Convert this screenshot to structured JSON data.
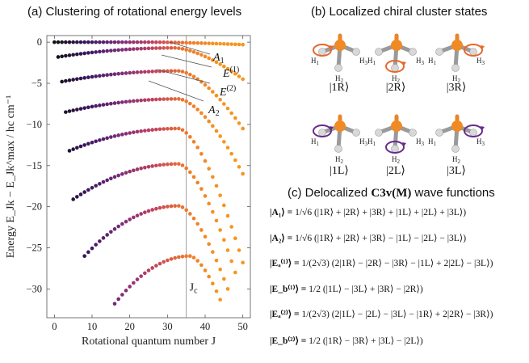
{
  "panel_a": {
    "title": "(a) Clustering of rotational energy levels"
  },
  "panel_b": {
    "title": "(b) Localized chiral cluster states",
    "atom_labels": {
      "h1": "H",
      "h1_sub": "1",
      "h2": "H",
      "h2_sub": "2",
      "h3": "H",
      "h3_sub": "3"
    },
    "states": [
      {
        "ket": "|1R⟩",
        "rotated": "h1",
        "color": "#e8672b"
      },
      {
        "ket": "|2R⟩",
        "rotated": "h2",
        "color": "#e8672b"
      },
      {
        "ket": "|3R⟩",
        "rotated": "h3",
        "color": "#e8672b"
      },
      {
        "ket": "|1L⟩",
        "rotated": "h1",
        "color": "#6a2a8a"
      },
      {
        "ket": "|2L⟩",
        "rotated": "h2",
        "color": "#6a2a8a"
      },
      {
        "ket": "|3L⟩",
        "rotated": "h3",
        "color": "#6a2a8a"
      }
    ]
  },
  "panel_c": {
    "title_prefix": "(c) Delocalized ",
    "title_group": "C3v(M)",
    "title_suffix": " wave functions",
    "equations": [
      {
        "lhs": "|A₁⟩ =",
        "rhs": "1/√6 (|1R⟩ + |2R⟩ + |3R⟩ + |1L⟩ + |2L⟩ + |3L⟩)"
      },
      {
        "lhs": "|A₂⟩ =",
        "rhs": "1/√6 (|1R⟩ + |2R⟩ + |3R⟩ − |1L⟩ − |2L⟩ − |3L⟩)"
      },
      {
        "lhs": "|Eₐ⁽¹⁾⟩ =",
        "rhs": "1/(2√3) (2|1R⟩ − |2R⟩ − |3R⟩ − |1L⟩ + 2|2L⟩ − |3L⟩)"
      },
      {
        "lhs": "|E_b⁽¹⁾⟩ =",
        "rhs": "1/2 (|1L⟩ − |3L⟩ + |3R⟩ − |2R⟩)"
      },
      {
        "lhs": "|Eₐ⁽²⁾⟩ =",
        "rhs": "1/(2√3) (2|1L⟩ − |2L⟩ − |3L⟩ − |1R⟩ + 2|2R⟩ − |3R⟩)"
      },
      {
        "lhs": "|E_b⁽²⁾⟩ =",
        "rhs": "1/2 (|1R⟩ − |3R⟩ + |3L⟩ − |2L⟩)"
      }
    ]
  },
  "chart_data": {
    "type": "scatter",
    "xlabel": "Rotational quantum number J",
    "ylabel": "Energy E_Jk − E_Jk^max / hc cm⁻¹",
    "xlim": [
      -2,
      52
    ],
    "ylim": [
      -33.5,
      0.8
    ],
    "xticks": [
      0,
      10,
      20,
      30,
      40,
      50
    ],
    "yticks": [
      0,
      -5,
      -10,
      -15,
      -20,
      -25,
      -30
    ],
    "grid": false,
    "vline": {
      "x": 35,
      "label": "J",
      "label_sub": "c"
    },
    "annotations": [
      {
        "label": "A",
        "sub": "1",
        "sup": ""
      },
      {
        "label": "E",
        "sub": "",
        "sup": "(1)"
      },
      {
        "label": "E",
        "sub": "",
        "sup": "(2)"
      },
      {
        "label": "A",
        "sub": "2",
        "sup": ""
      }
    ],
    "color_scale": [
      "#101010",
      "#3a1560",
      "#7a2d7a",
      "#c2405e",
      "#f07a2a",
      "#f7941d"
    ],
    "bands": [
      {
        "j_start": 0,
        "j_end": 50,
        "e_start": 0.0,
        "e_peak": 0.0,
        "j_peak": 25,
        "e_end": -0.3
      },
      {
        "j_start": 1,
        "j_end": 50,
        "e_start": -1.8,
        "e_peak": -0.7,
        "j_peak": 32,
        "e_end": -4.5
      },
      {
        "j_start": 2,
        "j_end": 50,
        "e_start": -4.8,
        "e_peak": -3.5,
        "j_peak": 33,
        "e_end": -10.5
      },
      {
        "j_start": 3,
        "j_end": 50,
        "e_start": -8.5,
        "e_peak": -6.9,
        "j_peak": 33,
        "e_end": -16.0
      },
      {
        "j_start": 4,
        "j_end": 50,
        "e_start": -13.2,
        "e_peak": -10.5,
        "j_peak": 33,
        "e_end": -26.8
      },
      {
        "j_start": 5,
        "j_end": 48,
        "e_start": -19.1,
        "e_peak": -14.8,
        "j_peak": 33,
        "e_end": -28.0
      },
      {
        "j_start": 8,
        "j_end": 46,
        "e_start": -26.0,
        "e_peak": -19.9,
        "j_peak": 33,
        "e_end": -30.0
      },
      {
        "j_start": 16,
        "j_end": 44,
        "e_start": -31.8,
        "e_peak": -26.0,
        "j_peak": 36,
        "e_end": -31.3
      }
    ]
  }
}
